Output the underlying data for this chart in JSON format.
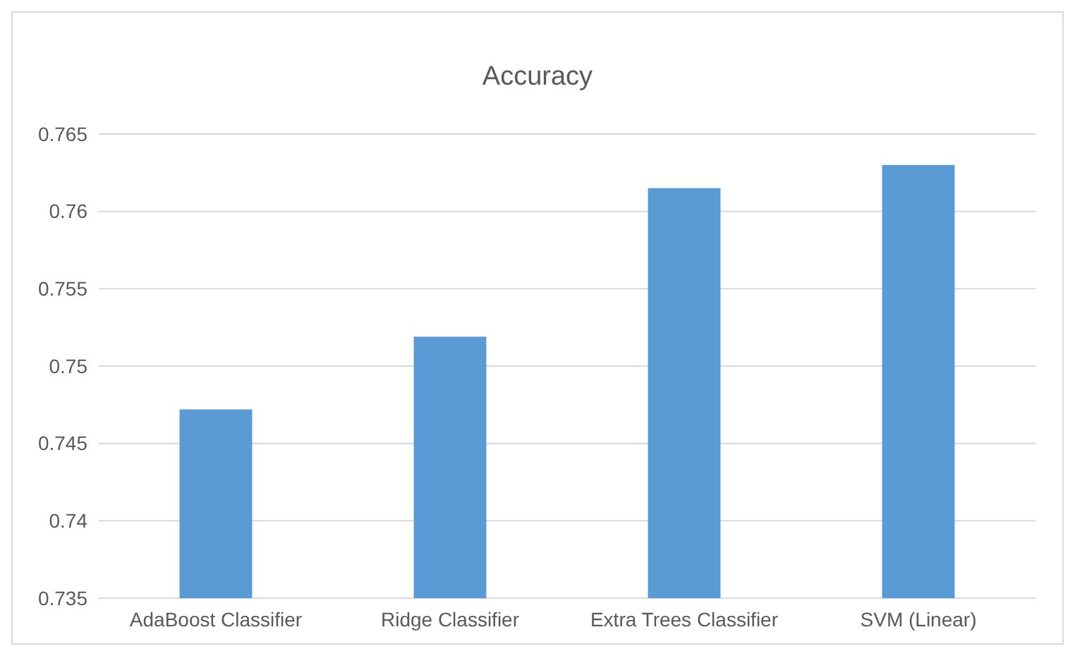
{
  "chart_data": {
    "type": "bar",
    "title": "Accuracy",
    "categories": [
      "AdaBoost Classifier",
      "Ridge Classifier",
      "Extra Trees Classifier",
      "SVM (Linear)"
    ],
    "values": [
      0.7472,
      0.7519,
      0.7615,
      0.763
    ],
    "color": "#5b9bd5",
    "ylim": [
      0.735,
      0.765
    ],
    "yticks": [
      0.735,
      0.74,
      0.745,
      0.75,
      0.755,
      0.76,
      0.765
    ],
    "grid": "y"
  }
}
